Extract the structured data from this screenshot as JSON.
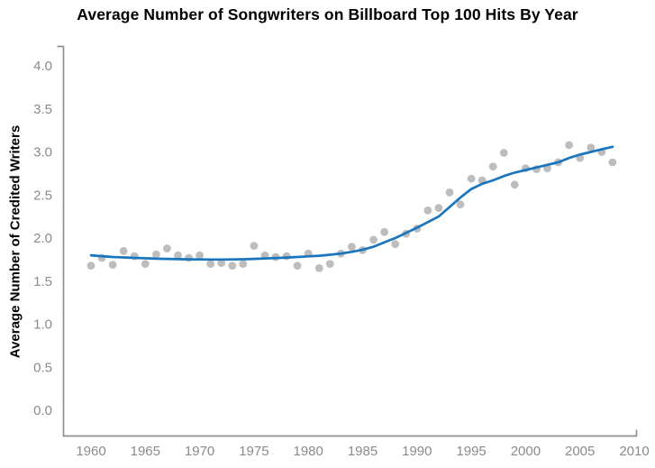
{
  "chart_data": {
    "type": "scatter",
    "title": "Average Number of Songwriters on Billboard Top 100 Hits By Year",
    "xlabel": "",
    "ylabel": "Average Number of Credited Writers",
    "xlim": [
      1960,
      2010
    ],
    "ylim": [
      0.0,
      4.0
    ],
    "grid": false,
    "legend": "none",
    "x_ticks": [
      1960,
      1965,
      1970,
      1975,
      1980,
      1985,
      1990,
      1995,
      2000,
      2005,
      2010
    ],
    "y_ticks": [
      "0.0",
      "0.5",
      "1.0",
      "1.5",
      "2.0",
      "2.5",
      "3.0",
      "3.5",
      "4.0"
    ],
    "colors": {
      "dot": "#bdbdbd",
      "line": "#1976be",
      "axis": "#8f8f8f",
      "tick_label": "#8a8a8a",
      "title": "#000000"
    },
    "series": [
      {
        "name": "yearly-average-points",
        "type": "scatter",
        "color": "#bdbdbd",
        "x": [
          1960,
          1961,
          1962,
          1963,
          1964,
          1965,
          1966,
          1967,
          1968,
          1969,
          1970,
          1971,
          1972,
          1973,
          1974,
          1975,
          1976,
          1977,
          1978,
          1979,
          1980,
          1981,
          1982,
          1983,
          1984,
          1985,
          1986,
          1987,
          1988,
          1989,
          1990,
          1991,
          1992,
          1993,
          1994,
          1995,
          1996,
          1997,
          1998,
          1999,
          2000,
          2001,
          2002,
          2003,
          2004,
          2005,
          2006,
          2007,
          2008
        ],
        "y": [
          1.68,
          1.77,
          1.69,
          1.85,
          1.79,
          1.7,
          1.81,
          1.88,
          1.8,
          1.77,
          1.8,
          1.7,
          1.71,
          1.68,
          1.7,
          1.91,
          1.8,
          1.78,
          1.79,
          1.68,
          1.82,
          1.65,
          1.7,
          1.82,
          1.9,
          1.86,
          1.98,
          2.07,
          1.93,
          2.05,
          2.11,
          2.32,
          2.35,
          2.53,
          2.39,
          2.69,
          2.67,
          2.83,
          2.99,
          2.62,
          2.81,
          2.8,
          2.81,
          2.88,
          3.08,
          2.93,
          3.05,
          3.0,
          2.88
        ]
      },
      {
        "name": "smoothed-trend",
        "type": "line",
        "color": "#1976be",
        "x": [
          1960,
          1961,
          1962,
          1963,
          1964,
          1965,
          1966,
          1967,
          1968,
          1969,
          1970,
          1971,
          1972,
          1973,
          1974,
          1975,
          1976,
          1977,
          1978,
          1979,
          1980,
          1981,
          1982,
          1983,
          1984,
          1985,
          1986,
          1987,
          1988,
          1989,
          1990,
          1991,
          1992,
          1993,
          1994,
          1995,
          1996,
          1997,
          1998,
          1999,
          2000,
          2001,
          2002,
          2003,
          2004,
          2005,
          2006,
          2007,
          2008
        ],
        "y": [
          1.8,
          1.79,
          1.78,
          1.775,
          1.77,
          1.765,
          1.76,
          1.758,
          1.755,
          1.753,
          1.752,
          1.751,
          1.751,
          1.752,
          1.754,
          1.758,
          1.763,
          1.768,
          1.774,
          1.78,
          1.787,
          1.795,
          1.806,
          1.82,
          1.84,
          1.865,
          1.9,
          1.95,
          2.0,
          2.06,
          2.12,
          2.185,
          2.25,
          2.36,
          2.47,
          2.57,
          2.63,
          2.67,
          2.72,
          2.76,
          2.79,
          2.82,
          2.85,
          2.88,
          2.93,
          2.97,
          3.0,
          3.03,
          3.06
        ]
      }
    ]
  }
}
